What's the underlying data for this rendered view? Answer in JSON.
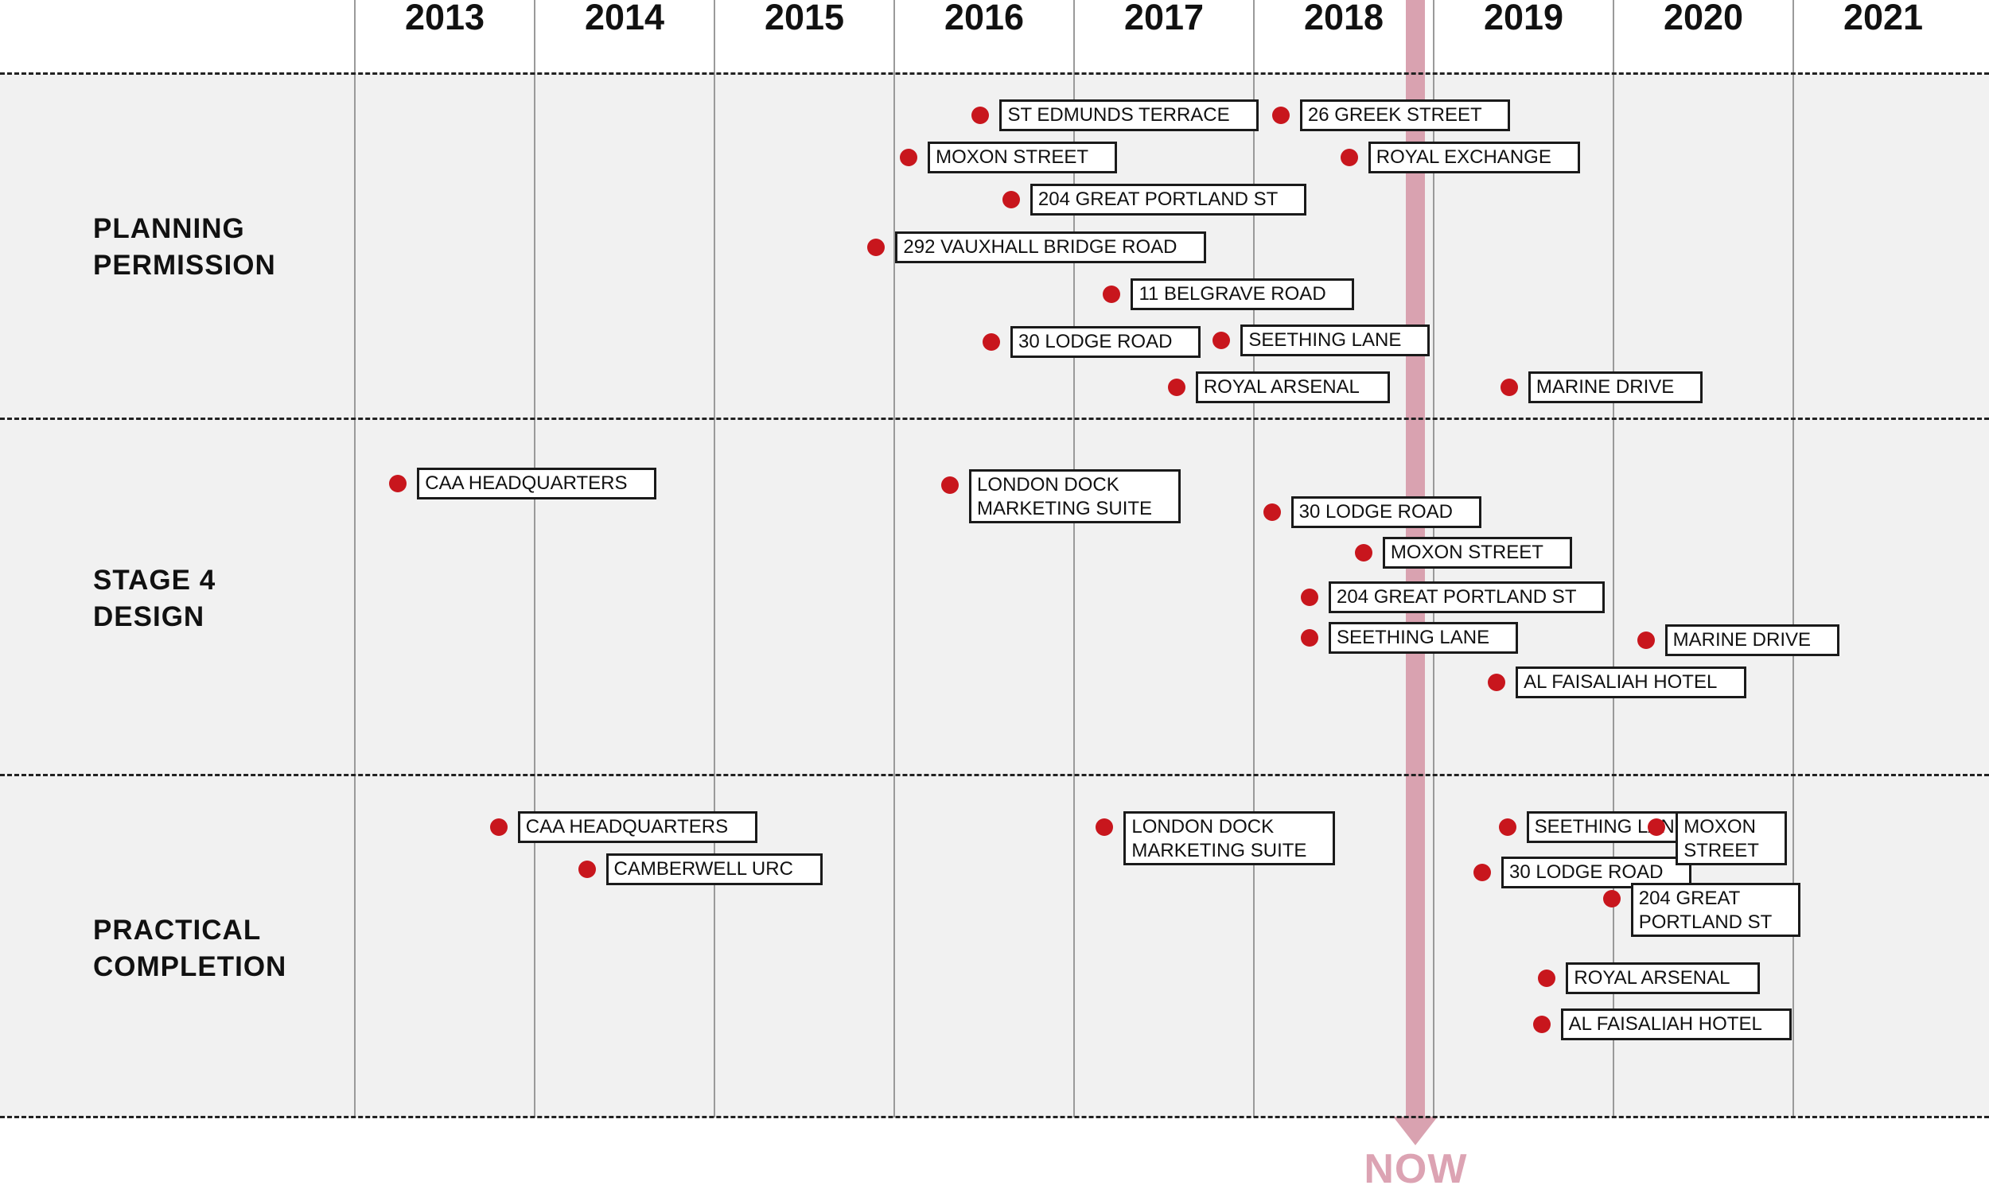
{
  "chart_data": {
    "type": "timeline",
    "years": [
      "2013",
      "2014",
      "2015",
      "2016",
      "2017",
      "2018",
      "2019",
      "2020",
      "2021"
    ],
    "now_label": "NOW",
    "now_position": 2018.9,
    "marker_color": "#c8161d",
    "now_color": "#d9a2b0",
    "rows": [
      {
        "id": "planning",
        "label": [
          "PLANNING",
          "PERMISSION"
        ],
        "events": [
          {
            "label": [
              "ST EDMUNDS TERRACE"
            ],
            "t": 2016.48
          },
          {
            "label": [
              "26 GREEK STREET"
            ],
            "t": 2018.15
          },
          {
            "label": [
              "MOXON STREET"
            ],
            "t": 2016.08
          },
          {
            "label": [
              "ROYAL EXCHANGE"
            ],
            "t": 2018.53
          },
          {
            "label": [
              "204 GREAT PORTLAND ST"
            ],
            "t": 2016.65
          },
          {
            "label": [
              "292 VAUXHALL BRIDGE ROAD"
            ],
            "t": 2015.9
          },
          {
            "label": [
              "11 BELGRAVE ROAD"
            ],
            "t": 2017.21
          },
          {
            "label": [
              "30 LODGE ROAD"
            ],
            "t": 2016.54
          },
          {
            "label": [
              "SEETHING LANE"
            ],
            "t": 2017.82
          },
          {
            "label": [
              "ROYAL ARSENAL"
            ],
            "t": 2017.57
          },
          {
            "label": [
              "MARINE DRIVE"
            ],
            "t": 2019.42
          }
        ]
      },
      {
        "id": "stage4",
        "label": [
          "STAGE 4",
          "DESIGN"
        ],
        "events": [
          {
            "label": [
              "CAA HEADQUARTERS"
            ],
            "t": 2013.24
          },
          {
            "label": [
              "LONDON DOCK",
              "MARKETING SUITE"
            ],
            "t": 2016.31
          },
          {
            "label": [
              "30 LODGE ROAD"
            ],
            "t": 2018.1
          },
          {
            "label": [
              "MOXON STREET"
            ],
            "t": 2018.61
          },
          {
            "label": [
              "204 GREAT PORTLAND ST"
            ],
            "t": 2018.31
          },
          {
            "label": [
              "SEETHING LANE"
            ],
            "t": 2018.31
          },
          {
            "label": [
              "MARINE DRIVE"
            ],
            "t": 2020.18
          },
          {
            "label": [
              "AL FAISALIAH HOTEL"
            ],
            "t": 2019.35
          }
        ]
      },
      {
        "id": "completion",
        "label": [
          "PRACTICAL",
          "COMPLETION"
        ],
        "events": [
          {
            "label": [
              "CAA HEADQUARTERS"
            ],
            "t": 2013.8
          },
          {
            "label": [
              "CAMBERWELL URC"
            ],
            "t": 2014.29
          },
          {
            "label": [
              "LONDON DOCK",
              "MARKETING SUITE"
            ],
            "t": 2017.17
          },
          {
            "label": [
              "SEETHING LANE"
            ],
            "t": 2019.41
          },
          {
            "label": [
              "30 LODGE ROAD"
            ],
            "t": 2019.27
          },
          {
            "label": [
              "MOXON",
              "STREET"
            ],
            "t": 2020.24
          },
          {
            "label": [
              "204 GREAT",
              "PORTLAND ST"
            ],
            "t": 2019.99
          },
          {
            "label": [
              "ROYAL ARSENAL"
            ],
            "t": 2019.63
          },
          {
            "label": [
              "AL FAISALIAH HOTEL"
            ],
            "t": 2019.6
          }
        ]
      }
    ]
  }
}
